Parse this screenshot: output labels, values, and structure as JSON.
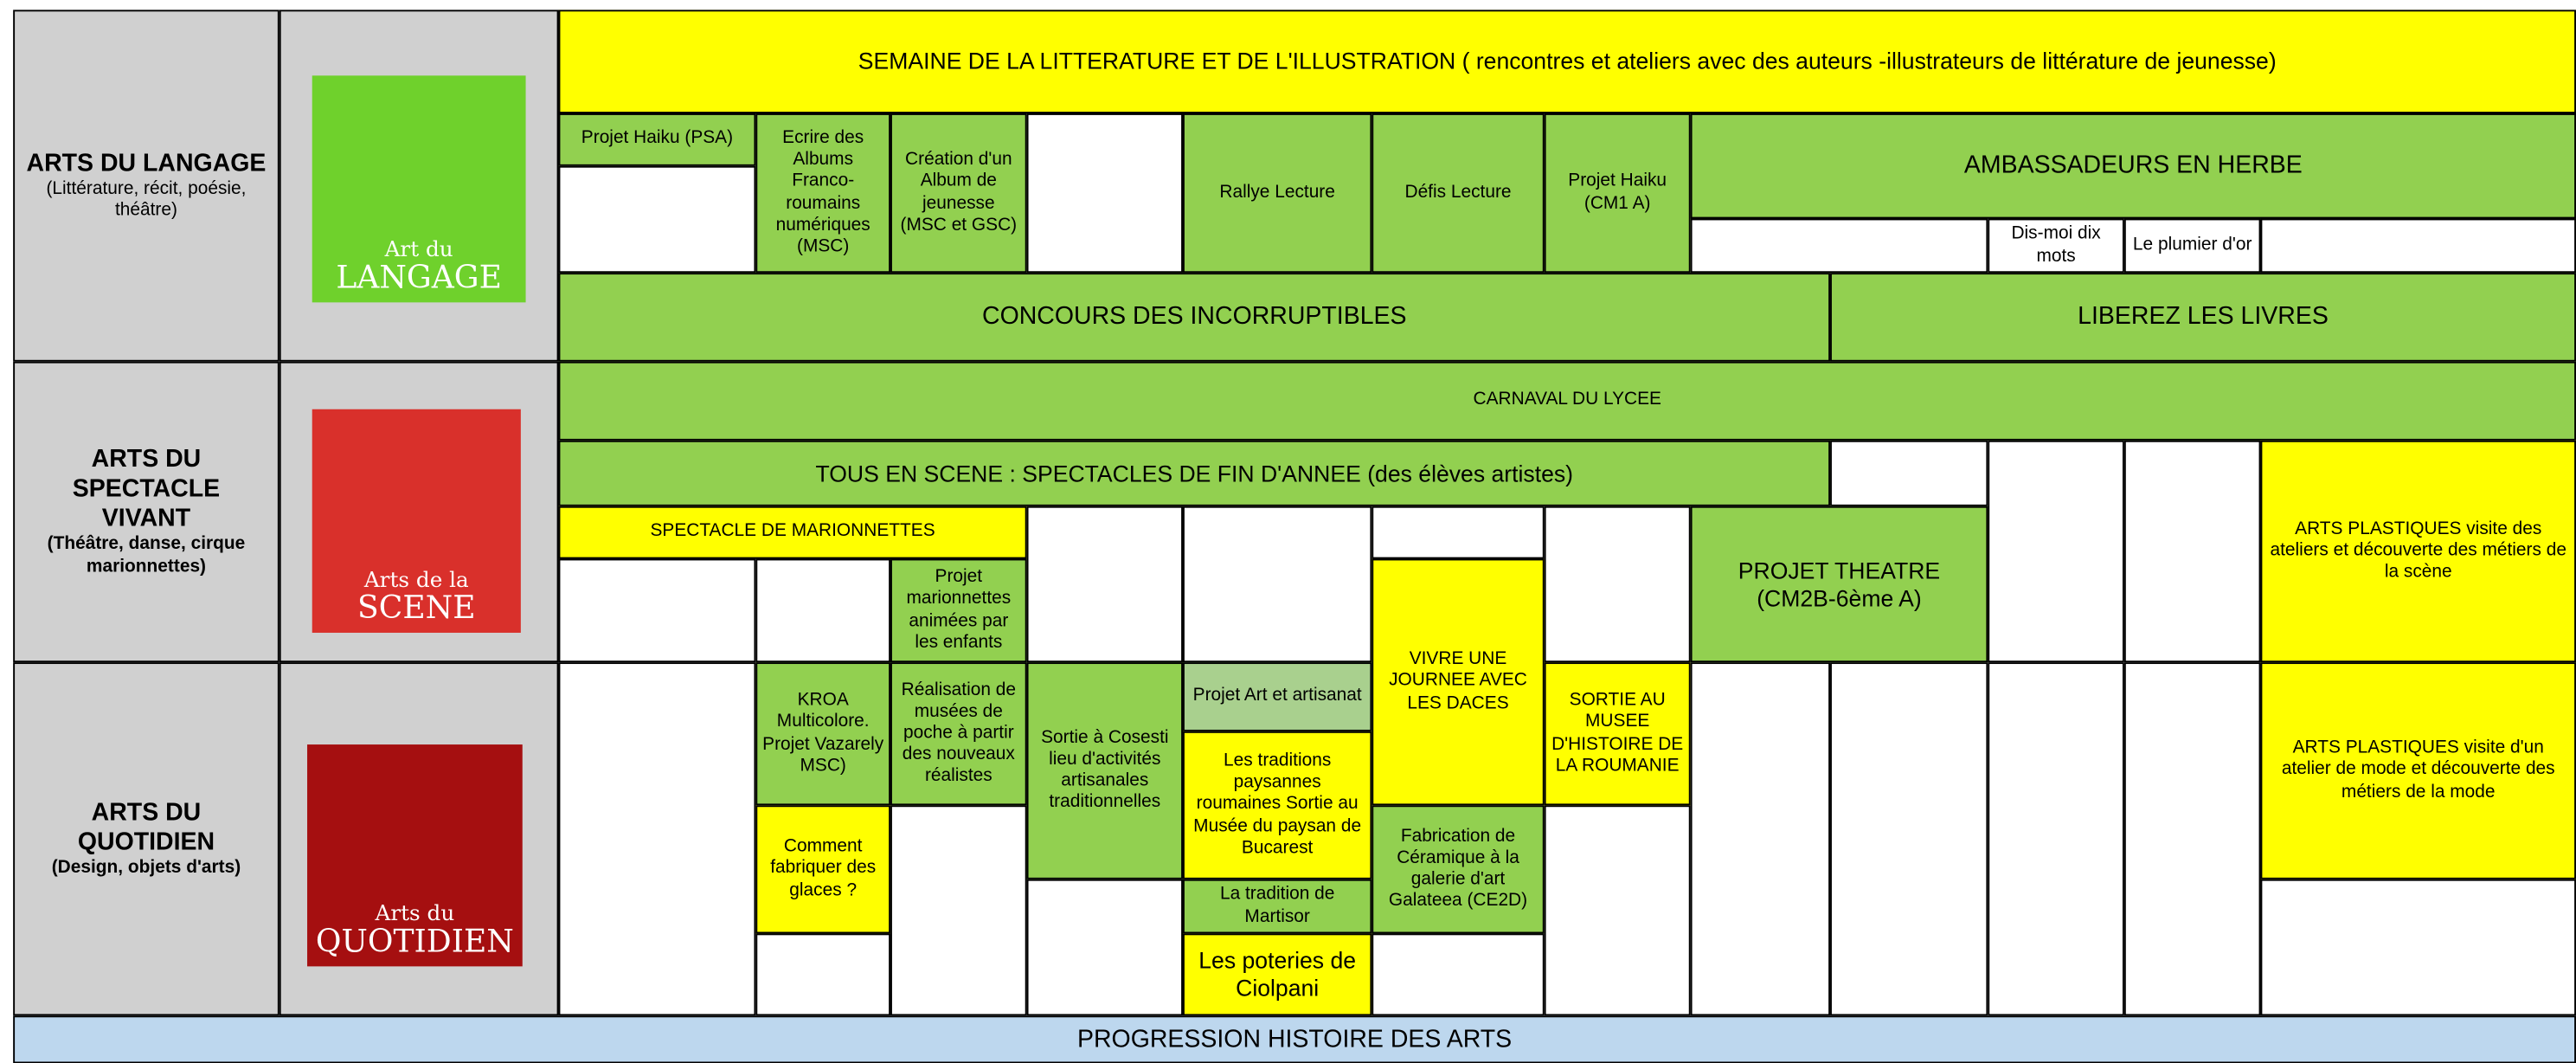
{
  "categories": [
    {
      "title": "ARTS DU LANGAGE",
      "subtitle": "(Littérature, récit, poésie, théâtre)",
      "logo_top": "Art du",
      "logo_bottom": "LANGAGE"
    },
    {
      "title": "ARTS DU SPECTACLE VIVANT",
      "subtitle": "(Théâtre, danse, cirque marionnettes)",
      "logo_top": "Arts de la",
      "logo_bottom": "SCENE"
    },
    {
      "title": "ARTS DU QUOTIDIEN",
      "subtitle": "(Design, objets d'arts)",
      "logo_top": "Arts du",
      "logo_bottom": "QUOTIDIEN"
    }
  ],
  "activities": [
    "SEMAINE DE LA LITTERATURE ET DE L'ILLUSTRATION ( rencontres  et ateliers avec des auteurs -illustrateurs de littérature de jeunesse)",
    "Projet Haiku (PSA)",
    "Ecrire des Albums Franco-roumains numériques (MSC)",
    "Création d'un Album de jeunesse (MSC et GSC)",
    "Rallye Lecture",
    "Défis Lecture",
    "Projet Haiku (CM1 A)",
    "AMBASSADEURS EN HERBE",
    "Dis-moi dix mots",
    "Le plumier d'or",
    "CONCOURS DES INCORRUPTIBLES",
    "LIBEREZ LES LIVRES",
    "CARNAVAL DU LYCEE",
    "TOUS EN SCENE : SPECTACLES DE FIN D'ANNEE (des élèves artistes)",
    "SPECTACLE DE MARIONNETTES",
    "Projet marionnettes animées par les enfants",
    "VIVRE UNE JOURNEE AVEC LES DACES",
    "PROJET THEATRE (CM2B-6ème A)",
    "ARTS PLASTIQUES visite des ateliers et découverte des métiers de la scène",
    "KROA Multicolore. Projet Vazarely MSC)",
    "Réalisation de musées de poche à partir des nouveaux réalistes",
    "Sortie à Cosesti lieu d'activités artisanales traditionnelles",
    "Projet Art et artisanat",
    "Les traditions paysannes roumaines Sortie au Musée du paysan de Bucarest",
    "SORTIE AU MUSEE D'HISTOIRE DE LA ROUMANIE",
    "ARTS PLASTIQUES  visite d'un atelier de mode et découverte des métiers de la mode",
    "Comment fabriquer des glaces ?",
    "Fabrication de Céramique à la galerie d'art Galateea (CE2D)",
    "La tradition de Martisor",
    "Les poteries de Ciolpani"
  ],
  "footer": "PROGRESSION HISTOIRE DES ARTS"
}
